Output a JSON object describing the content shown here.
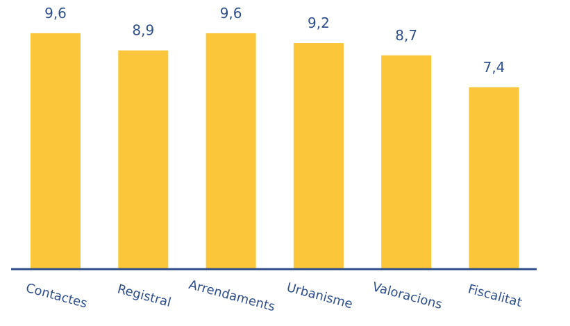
{
  "chart_data": {
    "type": "bar",
    "categories": [
      "Contactes",
      "Registral",
      "Arrendaments",
      "Urbanisme",
      "Valoracions",
      "Fiscalitat"
    ],
    "values": [
      9.6,
      8.9,
      9.6,
      9.2,
      8.7,
      7.4
    ],
    "value_labels": [
      "9,6",
      "8,9",
      "9,6",
      "9,2",
      "8,7",
      "7,4"
    ],
    "title": "",
    "xlabel": "",
    "ylabel": "",
    "ylim": [
      0,
      10.5
    ],
    "grid": false,
    "legend": "none",
    "colors": {
      "bar": "#fbc63a",
      "text": "#2f4f8a",
      "axis": "#2f4f8a"
    }
  }
}
